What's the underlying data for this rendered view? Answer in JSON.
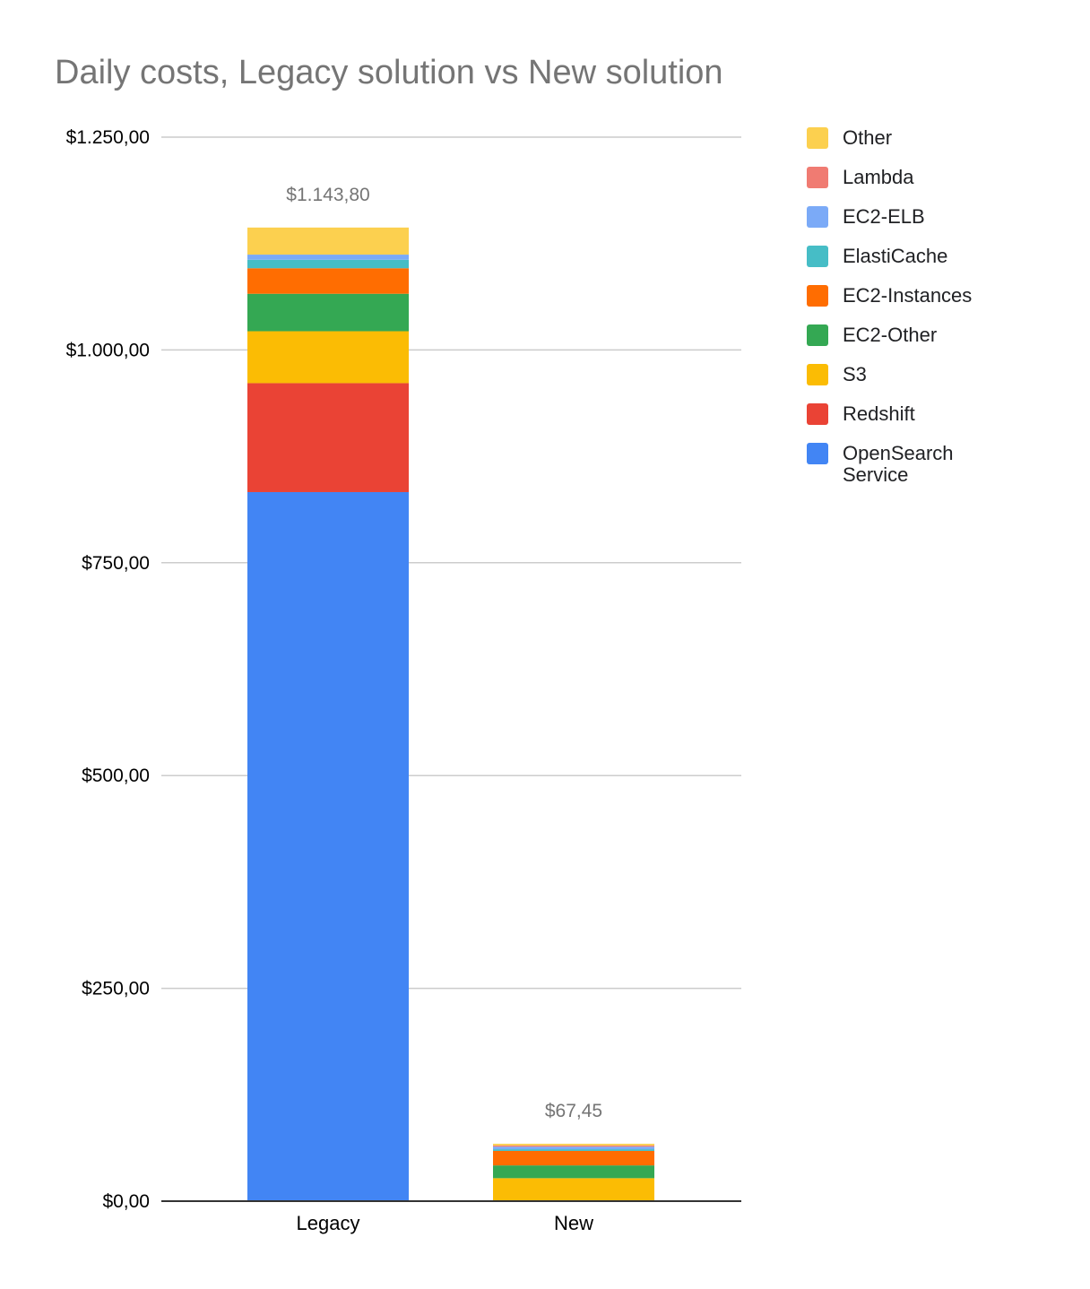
{
  "chart_data": {
    "type": "bar",
    "stacked": true,
    "title": "Daily costs, Legacy solution vs New solution",
    "xlabel": "",
    "ylabel": "",
    "categories": [
      "Legacy",
      "New"
    ],
    "ylim": [
      0,
      1250
    ],
    "yticks": [
      0,
      250,
      500,
      750,
      1000,
      1250
    ],
    "ytick_labels": [
      "$0,00",
      "$250,00",
      "$500,00",
      "$750,00",
      "$1.000,00",
      "$1.250,00"
    ],
    "totals": [
      1143.8,
      67.45
    ],
    "total_labels": [
      "$1.143,80",
      "$67,45"
    ],
    "grid": true,
    "legend_position": "right",
    "series": [
      {
        "name": "OpenSearch Service",
        "color": "#4285F4",
        "values": [
          833,
          0
        ]
      },
      {
        "name": "Redshift",
        "color": "#EA4335",
        "values": [
          128,
          0
        ]
      },
      {
        "name": "S3",
        "color": "#FBBC04",
        "values": [
          61,
          27
        ]
      },
      {
        "name": "EC2-Other",
        "color": "#34A853",
        "values": [
          44,
          15
        ]
      },
      {
        "name": "EC2-Instances",
        "color": "#FF6D01",
        "values": [
          30,
          17
        ]
      },
      {
        "name": "ElastiCache",
        "color": "#46BDC6",
        "values": [
          10,
          2
        ]
      },
      {
        "name": "EC2-ELB",
        "color": "#7BAAF7",
        "values": [
          6,
          3
        ]
      },
      {
        "name": "Lambda",
        "color": "#F07B72",
        "values": [
          0,
          1.45
        ]
      },
      {
        "name": "Other",
        "color": "#FCD04F",
        "values": [
          31.8,
          2
        ]
      }
    ],
    "legend_order": [
      "Other",
      "Lambda",
      "EC2-ELB",
      "ElastiCache",
      "EC2-Instances",
      "EC2-Other",
      "S3",
      "Redshift",
      "OpenSearch Service"
    ]
  }
}
